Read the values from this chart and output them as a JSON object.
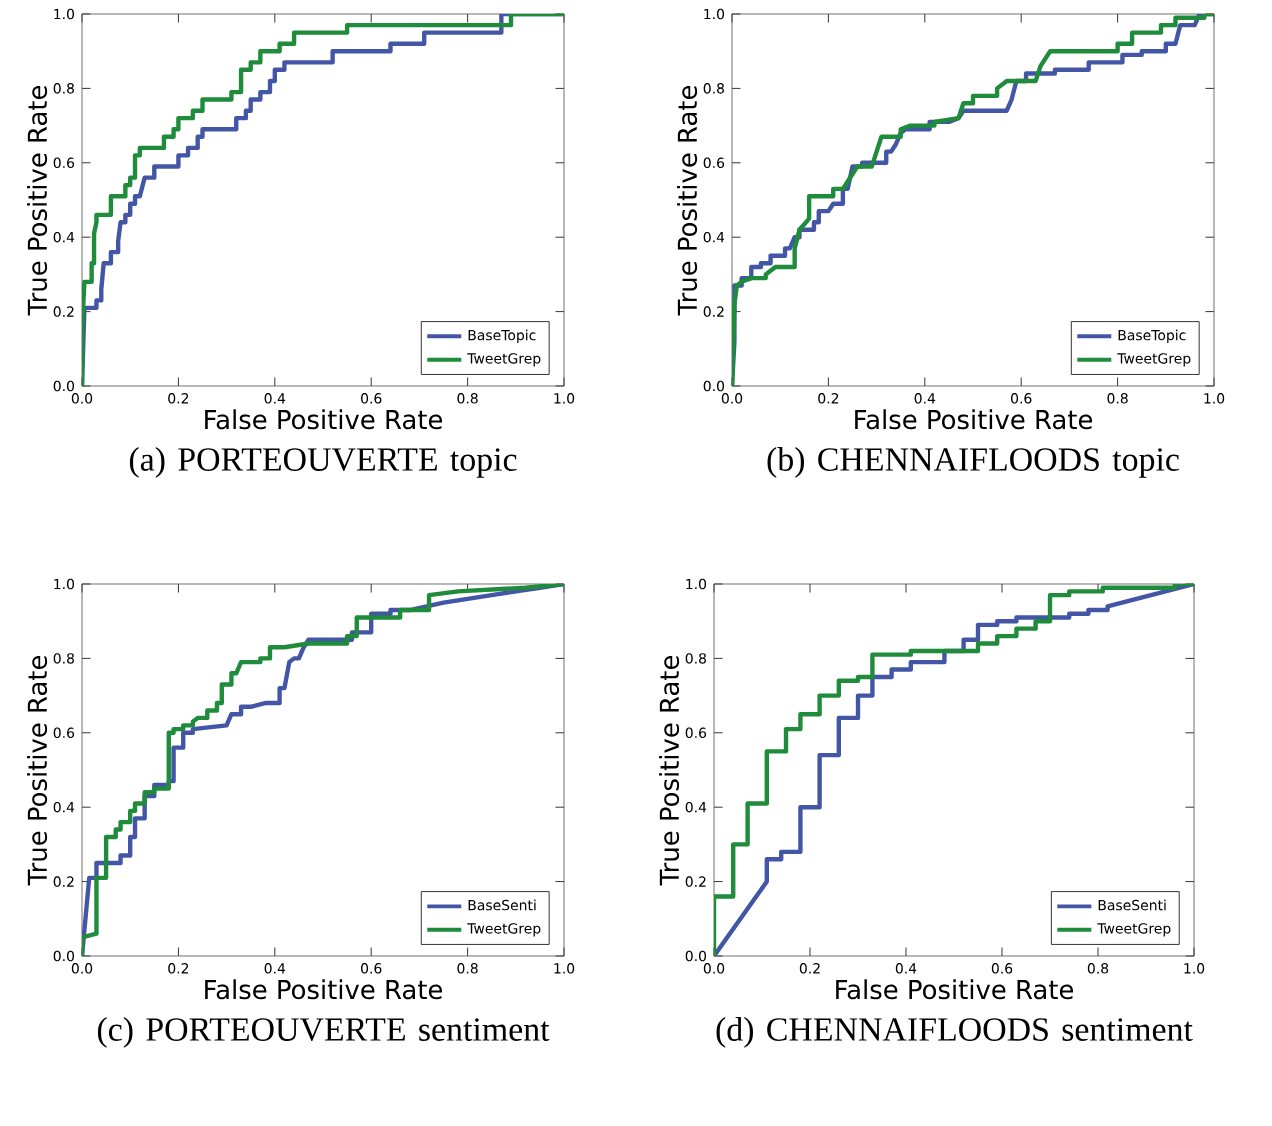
{
  "chart_data": [
    {
      "type": "line",
      "title": "(a) PORTEOUVERTE topic",
      "xlabel": "False Positive Rate",
      "ylabel": "True Positive Rate",
      "legend": "bottom right",
      "grid": false,
      "xlim": [
        0,
        1
      ],
      "ylim": [
        0,
        1
      ],
      "xticks": [
        {
          "value": 0,
          "label": "0.0"
        },
        {
          "value": 0.2,
          "label": "0.2"
        },
        {
          "value": 0.4,
          "label": "0.4"
        },
        {
          "value": 0.6,
          "label": "0.6"
        },
        {
          "value": 0.8,
          "label": "0.8"
        },
        {
          "value": 1,
          "label": "1.0"
        }
      ],
      "yticks": [
        {
          "value": 0,
          "label": "0.0"
        },
        {
          "value": 0.2,
          "label": "0.2"
        },
        {
          "value": 0.4,
          "label": "0.4"
        },
        {
          "value": 0.6,
          "label": "0.6"
        },
        {
          "value": 0.8,
          "label": "0.8"
        },
        {
          "value": 1,
          "label": "1.0"
        }
      ],
      "series": [
        {
          "name": "BaseTopic",
          "color": "#4356a6",
          "x": [
            0,
            0.005,
            0.03,
            0.03,
            0.04,
            0.04,
            0.045,
            0.06,
            0.06,
            0.075,
            0.075,
            0.08,
            0.09,
            0.09,
            0.1,
            0.1,
            0.11,
            0.11,
            0.12,
            0.13,
            0.15,
            0.15,
            0.2,
            0.2,
            0.22,
            0.22,
            0.24,
            0.24,
            0.25,
            0.25,
            0.32,
            0.32,
            0.34,
            0.34,
            0.35,
            0.35,
            0.37,
            0.37,
            0.39,
            0.39,
            0.4,
            0.4,
            0.42,
            0.42,
            0.52,
            0.52,
            0.64,
            0.64,
            0.71,
            0.71,
            0.87,
            0.87,
            1
          ],
          "values": [
            0,
            0.21,
            0.21,
            0.23,
            0.23,
            0.26,
            0.33,
            0.33,
            0.36,
            0.36,
            0.39,
            0.44,
            0.44,
            0.46,
            0.46,
            0.49,
            0.49,
            0.51,
            0.51,
            0.56,
            0.56,
            0.59,
            0.59,
            0.62,
            0.62,
            0.64,
            0.64,
            0.67,
            0.67,
            0.69,
            0.69,
            0.72,
            0.72,
            0.74,
            0.74,
            0.77,
            0.77,
            0.79,
            0.79,
            0.82,
            0.82,
            0.85,
            0.85,
            0.87,
            0.87,
            0.9,
            0.9,
            0.92,
            0.92,
            0.95,
            0.95,
            1,
            1
          ]
        },
        {
          "name": "TweetGrep",
          "color": "#1e8c3a",
          "x": [
            0,
            0,
            0.005,
            0.02,
            0.02,
            0.025,
            0.025,
            0.03,
            0.03,
            0.06,
            0.06,
            0.09,
            0.09,
            0.1,
            0.1,
            0.11,
            0.11,
            0.12,
            0.12,
            0.17,
            0.17,
            0.19,
            0.19,
            0.2,
            0.2,
            0.23,
            0.23,
            0.25,
            0.25,
            0.31,
            0.31,
            0.33,
            0.33,
            0.35,
            0.35,
            0.37,
            0.37,
            0.41,
            0.41,
            0.44,
            0.44,
            0.55,
            0.55,
            0.89,
            0.89,
            1
          ],
          "values": [
            0,
            0.15,
            0.28,
            0.28,
            0.33,
            0.33,
            0.41,
            0.44,
            0.46,
            0.46,
            0.51,
            0.51,
            0.54,
            0.54,
            0.56,
            0.56,
            0.62,
            0.62,
            0.64,
            0.64,
            0.67,
            0.67,
            0.69,
            0.69,
            0.72,
            0.72,
            0.74,
            0.74,
            0.77,
            0.77,
            0.79,
            0.79,
            0.85,
            0.85,
            0.87,
            0.87,
            0.9,
            0.9,
            0.92,
            0.92,
            0.95,
            0.95,
            0.97,
            0.97,
            1,
            1
          ]
        }
      ]
    },
    {
      "type": "line",
      "title": "(b) CHENNAIFLOODS topic",
      "xlabel": "False Positive Rate",
      "ylabel": "True Positive Rate",
      "legend": "bottom right",
      "grid": false,
      "xlim": [
        0,
        1
      ],
      "ylim": [
        0,
        1
      ],
      "xticks": [
        {
          "value": 0,
          "label": "0.0"
        },
        {
          "value": 0.2,
          "label": "0.2"
        },
        {
          "value": 0.4,
          "label": "0.4"
        },
        {
          "value": 0.6,
          "label": "0.6"
        },
        {
          "value": 0.8,
          "label": "0.8"
        },
        {
          "value": 1,
          "label": "1.0"
        }
      ],
      "yticks": [
        {
          "value": 0,
          "label": "0.0"
        },
        {
          "value": 0.2,
          "label": "0.2"
        },
        {
          "value": 0.4,
          "label": "0.4"
        },
        {
          "value": 0.6,
          "label": "0.6"
        },
        {
          "value": 0.8,
          "label": "0.8"
        },
        {
          "value": 1,
          "label": "1.0"
        }
      ],
      "series": [
        {
          "name": "BaseTopic",
          "color": "#4356a6",
          "x": [
            0,
            0.005,
            0.005,
            0.02,
            0.02,
            0.04,
            0.04,
            0.06,
            0.06,
            0.08,
            0.08,
            0.11,
            0.11,
            0.12,
            0.13,
            0.14,
            0.14,
            0.17,
            0.17,
            0.18,
            0.18,
            0.2,
            0.21,
            0.23,
            0.23,
            0.24,
            0.25,
            0.27,
            0.27,
            0.32,
            0.32,
            0.33,
            0.34,
            0.35,
            0.36,
            0.41,
            0.41,
            0.45,
            0.47,
            0.48,
            0.57,
            0.58,
            0.59,
            0.61,
            0.61,
            0.67,
            0.67,
            0.74,
            0.74,
            0.81,
            0.81,
            0.85,
            0.85,
            0.9,
            0.9,
            0.92,
            0.93,
            0.96,
            0.97,
            1
          ],
          "values": [
            0,
            0.12,
            0.27,
            0.27,
            0.29,
            0.29,
            0.32,
            0.32,
            0.33,
            0.33,
            0.35,
            0.35,
            0.37,
            0.37,
            0.4,
            0.4,
            0.42,
            0.42,
            0.44,
            0.44,
            0.47,
            0.47,
            0.49,
            0.49,
            0.53,
            0.53,
            0.59,
            0.59,
            0.6,
            0.6,
            0.63,
            0.63,
            0.65,
            0.68,
            0.69,
            0.69,
            0.71,
            0.71,
            0.72,
            0.74,
            0.74,
            0.77,
            0.82,
            0.82,
            0.84,
            0.84,
            0.85,
            0.85,
            0.87,
            0.87,
            0.89,
            0.89,
            0.9,
            0.9,
            0.92,
            0.92,
            0.97,
            0.97,
            1,
            1
          ]
        },
        {
          "name": "TweetGrep",
          "color": "#1e8c3a",
          "x": [
            0,
            0.005,
            0.01,
            0.02,
            0.04,
            0.07,
            0.07,
            0.09,
            0.13,
            0.13,
            0.14,
            0.16,
            0.16,
            0.21,
            0.21,
            0.23,
            0.25,
            0.26,
            0.29,
            0.3,
            0.31,
            0.35,
            0.35,
            0.37,
            0.42,
            0.42,
            0.47,
            0.48,
            0.5,
            0.5,
            0.55,
            0.55,
            0.57,
            0.63,
            0.64,
            0.66,
            0.8,
            0.8,
            0.83,
            0.83,
            0.89,
            0.89,
            0.92,
            0.92,
            0.98,
            0.98,
            1
          ],
          "values": [
            0,
            0.22,
            0.27,
            0.28,
            0.29,
            0.29,
            0.3,
            0.32,
            0.32,
            0.37,
            0.42,
            0.45,
            0.51,
            0.51,
            0.53,
            0.53,
            0.57,
            0.59,
            0.59,
            0.63,
            0.67,
            0.67,
            0.69,
            0.7,
            0.7,
            0.71,
            0.72,
            0.76,
            0.76,
            0.78,
            0.78,
            0.8,
            0.82,
            0.82,
            0.86,
            0.9,
            0.9,
            0.92,
            0.92,
            0.95,
            0.95,
            0.97,
            0.97,
            0.99,
            0.99,
            1,
            1
          ]
        }
      ]
    },
    {
      "type": "line",
      "title": "(c) PORTEOUVERTE sentiment",
      "xlabel": "False Positive Rate",
      "ylabel": "True Positive Rate",
      "legend": "bottom right",
      "grid": false,
      "xlim": [
        0,
        1
      ],
      "ylim": [
        0,
        1
      ],
      "xticks": [
        {
          "value": 0,
          "label": "0.0"
        },
        {
          "value": 0.2,
          "label": "0.2"
        },
        {
          "value": 0.4,
          "label": "0.4"
        },
        {
          "value": 0.6,
          "label": "0.6"
        },
        {
          "value": 0.8,
          "label": "0.8"
        },
        {
          "value": 1,
          "label": "1.0"
        }
      ],
      "yticks": [
        {
          "value": 0,
          "label": "0.0"
        },
        {
          "value": 0.2,
          "label": "0.2"
        },
        {
          "value": 0.4,
          "label": "0.4"
        },
        {
          "value": 0.6,
          "label": "0.6"
        },
        {
          "value": 0.8,
          "label": "0.8"
        },
        {
          "value": 1,
          "label": "1.0"
        }
      ],
      "series": [
        {
          "name": "BaseSenti",
          "color": "#4356a6",
          "x": [
            0,
            0.01,
            0.015,
            0.03,
            0.03,
            0.08,
            0.08,
            0.1,
            0.1,
            0.11,
            0.11,
            0.13,
            0.13,
            0.15,
            0.15,
            0.18,
            0.18,
            0.19,
            0.19,
            0.21,
            0.21,
            0.23,
            0.23,
            0.3,
            0.31,
            0.33,
            0.33,
            0.35,
            0.38,
            0.41,
            0.41,
            0.42,
            0.43,
            0.44,
            0.45,
            0.46,
            0.47,
            0.56,
            0.56,
            0.6,
            0.6,
            0.64,
            0.64,
            0.68,
            0.75,
            0.85,
            0.95,
            1
          ],
          "values": [
            0,
            0.14,
            0.21,
            0.21,
            0.25,
            0.25,
            0.27,
            0.27,
            0.32,
            0.32,
            0.37,
            0.37,
            0.43,
            0.43,
            0.46,
            0.46,
            0.47,
            0.47,
            0.56,
            0.56,
            0.6,
            0.6,
            0.61,
            0.62,
            0.65,
            0.65,
            0.67,
            0.67,
            0.68,
            0.68,
            0.72,
            0.72,
            0.79,
            0.8,
            0.8,
            0.83,
            0.85,
            0.85,
            0.87,
            0.87,
            0.92,
            0.92,
            0.93,
            0.93,
            0.95,
            0.97,
            0.99,
            1
          ]
        },
        {
          "name": "TweetGrep",
          "color": "#1e8c3a",
          "x": [
            0,
            0,
            0.03,
            0.03,
            0.05,
            0.05,
            0.07,
            0.07,
            0.08,
            0.08,
            0.1,
            0.1,
            0.11,
            0.11,
            0.13,
            0.13,
            0.15,
            0.15,
            0.18,
            0.18,
            0.19,
            0.19,
            0.21,
            0.21,
            0.23,
            0.23,
            0.24,
            0.26,
            0.26,
            0.28,
            0.28,
            0.29,
            0.29,
            0.31,
            0.31,
            0.32,
            0.33,
            0.37,
            0.37,
            0.39,
            0.39,
            0.42,
            0.47,
            0.55,
            0.55,
            0.57,
            0.57,
            0.66,
            0.66,
            0.72,
            0.72,
            0.78,
            0.92,
            1
          ],
          "values": [
            0,
            0.05,
            0.06,
            0.21,
            0.21,
            0.32,
            0.32,
            0.34,
            0.34,
            0.36,
            0.36,
            0.39,
            0.39,
            0.41,
            0.41,
            0.44,
            0.44,
            0.45,
            0.45,
            0.6,
            0.6,
            0.61,
            0.61,
            0.62,
            0.62,
            0.63,
            0.64,
            0.64,
            0.66,
            0.66,
            0.68,
            0.68,
            0.73,
            0.73,
            0.76,
            0.76,
            0.79,
            0.79,
            0.8,
            0.8,
            0.83,
            0.83,
            0.84,
            0.84,
            0.86,
            0.86,
            0.91,
            0.91,
            0.93,
            0.93,
            0.97,
            0.98,
            0.99,
            1
          ]
        }
      ]
    },
    {
      "type": "line",
      "title": "(d) CHENNAIFLOODS sentiment",
      "xlabel": "False Positive Rate",
      "ylabel": "True Positive Rate",
      "legend": "bottom right",
      "grid": false,
      "xlim": [
        0,
        1
      ],
      "ylim": [
        0,
        1
      ],
      "xticks": [
        {
          "value": 0,
          "label": "0.0"
        },
        {
          "value": 0.2,
          "label": "0.2"
        },
        {
          "value": 0.4,
          "label": "0.4"
        },
        {
          "value": 0.6,
          "label": "0.6"
        },
        {
          "value": 0.8,
          "label": "0.8"
        },
        {
          "value": 1,
          "label": "1.0"
        }
      ],
      "yticks": [
        {
          "value": 0,
          "label": "0.0"
        },
        {
          "value": 0.2,
          "label": "0.2"
        },
        {
          "value": 0.4,
          "label": "0.4"
        },
        {
          "value": 0.6,
          "label": "0.6"
        },
        {
          "value": 0.8,
          "label": "0.8"
        },
        {
          "value": 1,
          "label": "1.0"
        }
      ],
      "series": [
        {
          "name": "BaseSenti",
          "color": "#4356a6",
          "x": [
            0,
            0.11,
            0.11,
            0.14,
            0.14,
            0.18,
            0.18,
            0.22,
            0.22,
            0.26,
            0.26,
            0.3,
            0.3,
            0.33,
            0.33,
            0.37,
            0.37,
            0.41,
            0.41,
            0.48,
            0.48,
            0.52,
            0.52,
            0.55,
            0.55,
            0.59,
            0.59,
            0.63,
            0.63,
            0.74,
            0.74,
            0.78,
            0.78,
            0.82,
            0.82,
            0.85,
            1
          ],
          "values": [
            0,
            0.2,
            0.26,
            0.26,
            0.28,
            0.28,
            0.4,
            0.4,
            0.54,
            0.54,
            0.64,
            0.64,
            0.7,
            0.7,
            0.75,
            0.75,
            0.77,
            0.77,
            0.79,
            0.79,
            0.82,
            0.82,
            0.85,
            0.85,
            0.89,
            0.89,
            0.9,
            0.9,
            0.91,
            0.91,
            0.92,
            0.92,
            0.93,
            0.93,
            0.94,
            0.95,
            1
          ]
        },
        {
          "name": "TweetGrep",
          "color": "#1e8c3a",
          "x": [
            0,
            0,
            0.04,
            0.04,
            0.07,
            0.07,
            0.11,
            0.11,
            0.15,
            0.15,
            0.18,
            0.18,
            0.22,
            0.22,
            0.26,
            0.26,
            0.3,
            0.3,
            0.33,
            0.33,
            0.41,
            0.41,
            0.55,
            0.55,
            0.59,
            0.59,
            0.63,
            0.63,
            0.67,
            0.67,
            0.7,
            0.7,
            0.74,
            0.74,
            0.81,
            0.81,
            0.96,
            0.96,
            1
          ],
          "values": [
            0,
            0.16,
            0.16,
            0.3,
            0.3,
            0.41,
            0.41,
            0.55,
            0.55,
            0.61,
            0.61,
            0.65,
            0.65,
            0.7,
            0.7,
            0.74,
            0.74,
            0.75,
            0.75,
            0.81,
            0.81,
            0.82,
            0.82,
            0.84,
            0.84,
            0.86,
            0.86,
            0.88,
            0.88,
            0.9,
            0.9,
            0.97,
            0.97,
            0.98,
            0.98,
            0.99,
            0.99,
            1,
            1
          ]
        }
      ]
    }
  ]
}
